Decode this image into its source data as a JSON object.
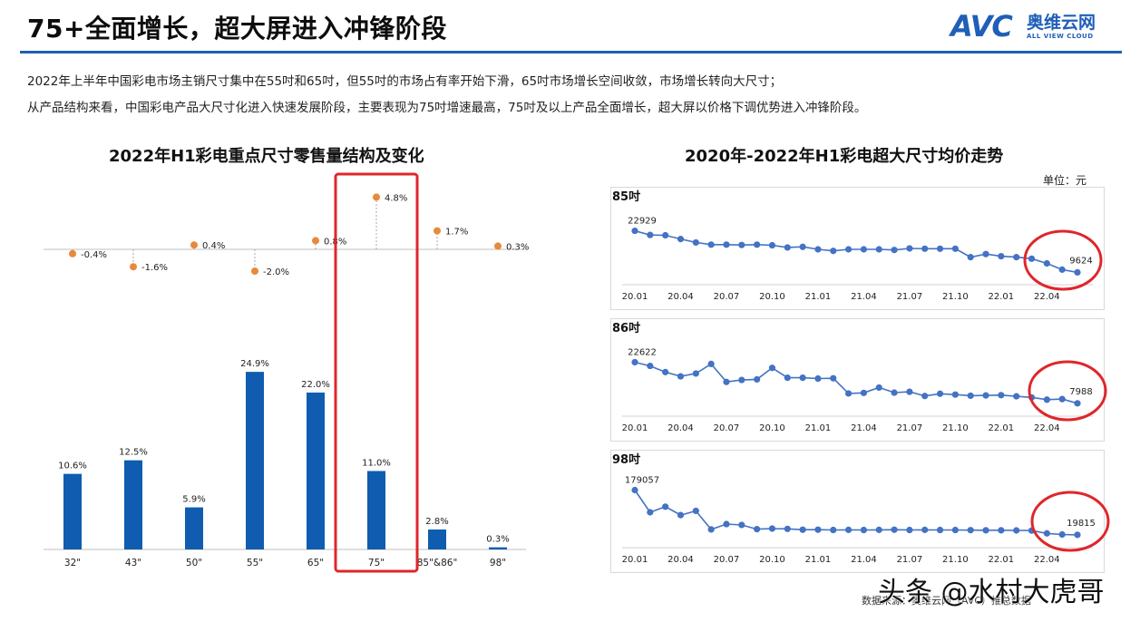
{
  "header": {
    "title": "75+全面增长，超大屏进入冲锋阶段",
    "logo_text": "AVC",
    "logo_cn": "奥维云网",
    "logo_en": "ALL VIEW CLOUD"
  },
  "description": [
    "2022年上半年中国彩电市场主销尺寸集中在55吋和65吋，但55吋的市场占有率开始下滑，65吋市场增长空间收敛，市场增长转向大尺寸；",
    "从产品结构来看，中国彩电产品大尺寸化进入快速发展阶段，主要表现为75吋增速最高，75吋及以上产品全面增长，超大屏以价格下调优势进入冲锋阶段。"
  ],
  "unit_label": "单位：元",
  "footer": "数据来源：奥维云网（AVC）推总数据",
  "watermark_overlay": "头条 @水村大虎哥",
  "colors": {
    "accent": "#1f5fb8",
    "bar": "#0f5cb0",
    "dot": "#e8893b",
    "line": "#4472c4",
    "highlight": "#e0262a"
  },
  "chart_data": [
    {
      "type": "bar",
      "title": "2022年H1彩电重点尺寸零售量结构及变化",
      "categories": [
        "32\"",
        "43\"",
        "50\"",
        "55\"",
        "65\"",
        "75\"",
        "85\"&86\"",
        "98\""
      ],
      "series": [
        {
          "values": [
            10.6,
            12.5,
            5.9,
            24.9,
            22.0,
            11.0,
            2.8,
            0.3
          ],
          "labels": [
            "10.6%",
            "12.5%",
            "5.9%",
            "24.9%",
            "22.0%",
            "11.0%",
            "2.8%",
            "0.3%"
          ]
        }
      ],
      "change": {
        "values": [
          -0.4,
          -1.6,
          0.4,
          -2.0,
          0.8,
          4.8,
          1.7,
          0.3
        ],
        "labels": [
          "-0.4%",
          "-1.6%",
          "0.4%",
          "-2.0%",
          "0.8%",
          "4.8%",
          "1.7%",
          "0.3%"
        ]
      },
      "highlight_category": "75\"",
      "ylim": [
        0,
        30
      ]
    },
    {
      "type": "line",
      "title": "2020年-2022年H1彩电超大尺寸均价走势",
      "x_ticks": [
        "20.01",
        "20.04",
        "20.07",
        "20.10",
        "21.01",
        "21.04",
        "21.07",
        "21.10",
        "22.01",
        "22.04"
      ],
      "panels": [
        {
          "name": "85吋",
          "values": [
            22929,
            21600,
            21500,
            20300,
            19200,
            18500,
            18500,
            18400,
            18500,
            18300,
            17600,
            17800,
            17000,
            16500,
            17000,
            17000,
            17000,
            16800,
            17300,
            17200,
            17200,
            17200,
            14500,
            15500,
            14800,
            14500,
            14000,
            12500,
            10500,
            9624
          ],
          "first_label": "22929",
          "last_label": "9624",
          "ylim": [
            8000,
            26000
          ]
        },
        {
          "name": "86吋",
          "values": [
            22622,
            21300,
            19100,
            17600,
            18600,
            22000,
            15600,
            16300,
            16500,
            20600,
            17100,
            17100,
            16800,
            16900,
            11500,
            11700,
            13600,
            11800,
            12100,
            10600,
            11400,
            11100,
            10700,
            10800,
            10900,
            10500,
            10100,
            9300,
            9500,
            7988
          ],
          "first_label": "22622",
          "last_label": "7988",
          "ylim": [
            6000,
            26000
          ]
        },
        {
          "name": "98吋",
          "values": [
            179057,
            100000,
            120000,
            90000,
            105000,
            39000,
            58000,
            55000,
            40000,
            42000,
            41000,
            38000,
            38000,
            37000,
            37500,
            37000,
            37500,
            38000,
            37000,
            37500,
            37000,
            37000,
            36500,
            36000,
            36000,
            35500,
            35000,
            25000,
            21000,
            19815
          ],
          "first_label": "179057",
          "last_label": "19815",
          "ylim": [
            0,
            200000
          ]
        }
      ]
    }
  ]
}
